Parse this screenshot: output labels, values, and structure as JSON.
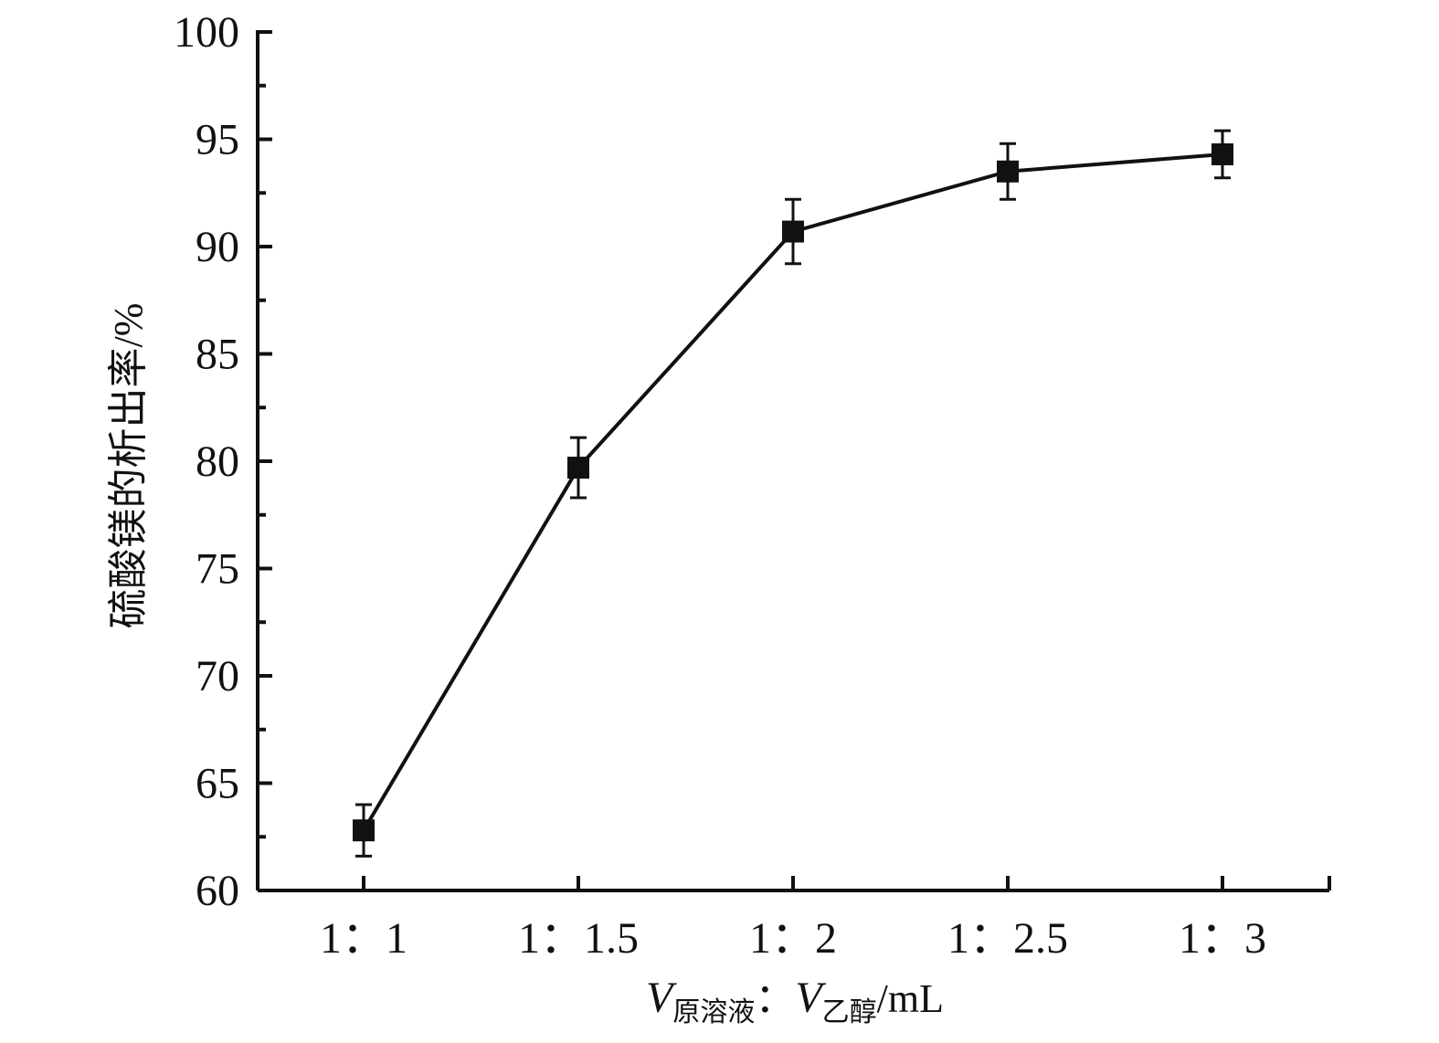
{
  "chart_data": {
    "type": "line",
    "categories": [
      "1：1",
      "1：1.5",
      "1：2",
      "1：2.5",
      "1：3"
    ],
    "series": [
      {
        "values": [
          62.8,
          79.7,
          90.7,
          93.5,
          94.3
        ],
        "error": [
          1.2,
          1.4,
          1.5,
          1.3,
          1.1
        ]
      }
    ],
    "ylabel": "硫酸镁的析出率/%",
    "xlabel": {
      "v1": "V",
      "sub1": "原溶液",
      "sep": "：",
      "v2": "V",
      "sub2": "乙醇",
      "unit": "/mL"
    },
    "ylim": [
      60,
      100
    ],
    "yticks": [
      "60",
      "65",
      "70",
      "75",
      "80",
      "85",
      "90",
      "95",
      "100"
    ],
    "marker": "square",
    "color": "#111111",
    "grid": false
  }
}
